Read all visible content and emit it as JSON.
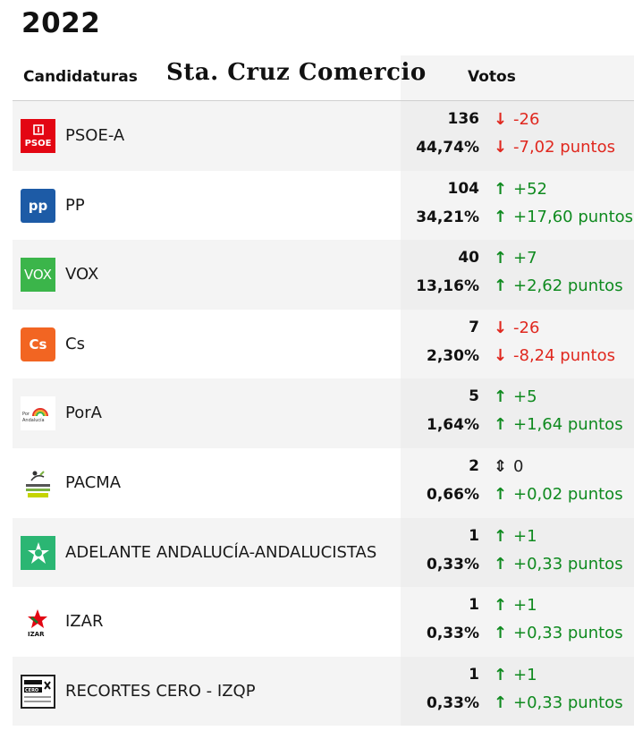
{
  "year": "2022",
  "header": {
    "candidaturas_label": "Candidaturas",
    "place": "Sta. Cruz Comercio",
    "votos_label": "Votos"
  },
  "colors": {
    "up": "#0f8a1f",
    "down": "#e0281f"
  },
  "parties": [
    {
      "name": "PSOE-A",
      "logo_text": "PSOE",
      "logo_icon": "psoe-logo-icon",
      "votes": "136",
      "percent": "44,74%",
      "delta_votes": "-26",
      "delta_percent": "-7,02 puntos",
      "trend": "down"
    },
    {
      "name": "PP",
      "logo_text": "pp",
      "logo_icon": "pp-logo-icon",
      "votes": "104",
      "percent": "34,21%",
      "delta_votes": "+52",
      "delta_percent": "+17,60 puntos",
      "trend": "up"
    },
    {
      "name": "VOX",
      "logo_text": "VOX",
      "logo_icon": "vox-logo-icon",
      "votes": "40",
      "percent": "13,16%",
      "delta_votes": "+7",
      "delta_percent": "+2,62 puntos",
      "trend": "up"
    },
    {
      "name": "Cs",
      "logo_text": "Cs",
      "logo_icon": "cs-logo-icon",
      "votes": "7",
      "percent": "2,30%",
      "delta_votes": "-26",
      "delta_percent": "-8,24 puntos",
      "trend": "down"
    },
    {
      "name": "PorA",
      "logo_text": "Por Andalucía",
      "logo_icon": "pora-logo-icon",
      "votes": "5",
      "percent": "1,64%",
      "delta_votes": "+5",
      "delta_percent": "+1,64 puntos",
      "trend": "up"
    },
    {
      "name": "PACMA",
      "logo_text": "Partido Animalista PACMA",
      "logo_icon": "pacma-logo-icon",
      "votes": "2",
      "percent": "0,66%",
      "delta_votes": "0",
      "delta_percent": "+0,02 puntos",
      "trend": "same",
      "trend_percent": "up"
    },
    {
      "name": "ADELANTE ANDALUCÍA-ANDALUCISTAS",
      "logo_text": "",
      "logo_icon": "adelante-andalucia-logo-icon",
      "votes": "1",
      "percent": "0,33%",
      "delta_votes": "+1",
      "delta_percent": "+0,33 puntos",
      "trend": "up"
    },
    {
      "name": "IZAR",
      "logo_text": "IZAR",
      "logo_icon": "izar-logo-icon",
      "votes": "1",
      "percent": "0,33%",
      "delta_votes": "+1",
      "delta_percent": "+0,33 puntos",
      "trend": "up"
    },
    {
      "name": "RECORTES CERO - IZQP",
      "logo_text": "RECORTES CERO",
      "logo_icon": "recortes-cero-logo-icon",
      "votes": "1",
      "percent": "0,33%",
      "delta_votes": "+1",
      "delta_percent": "+0,33 puntos",
      "trend": "up"
    }
  ]
}
